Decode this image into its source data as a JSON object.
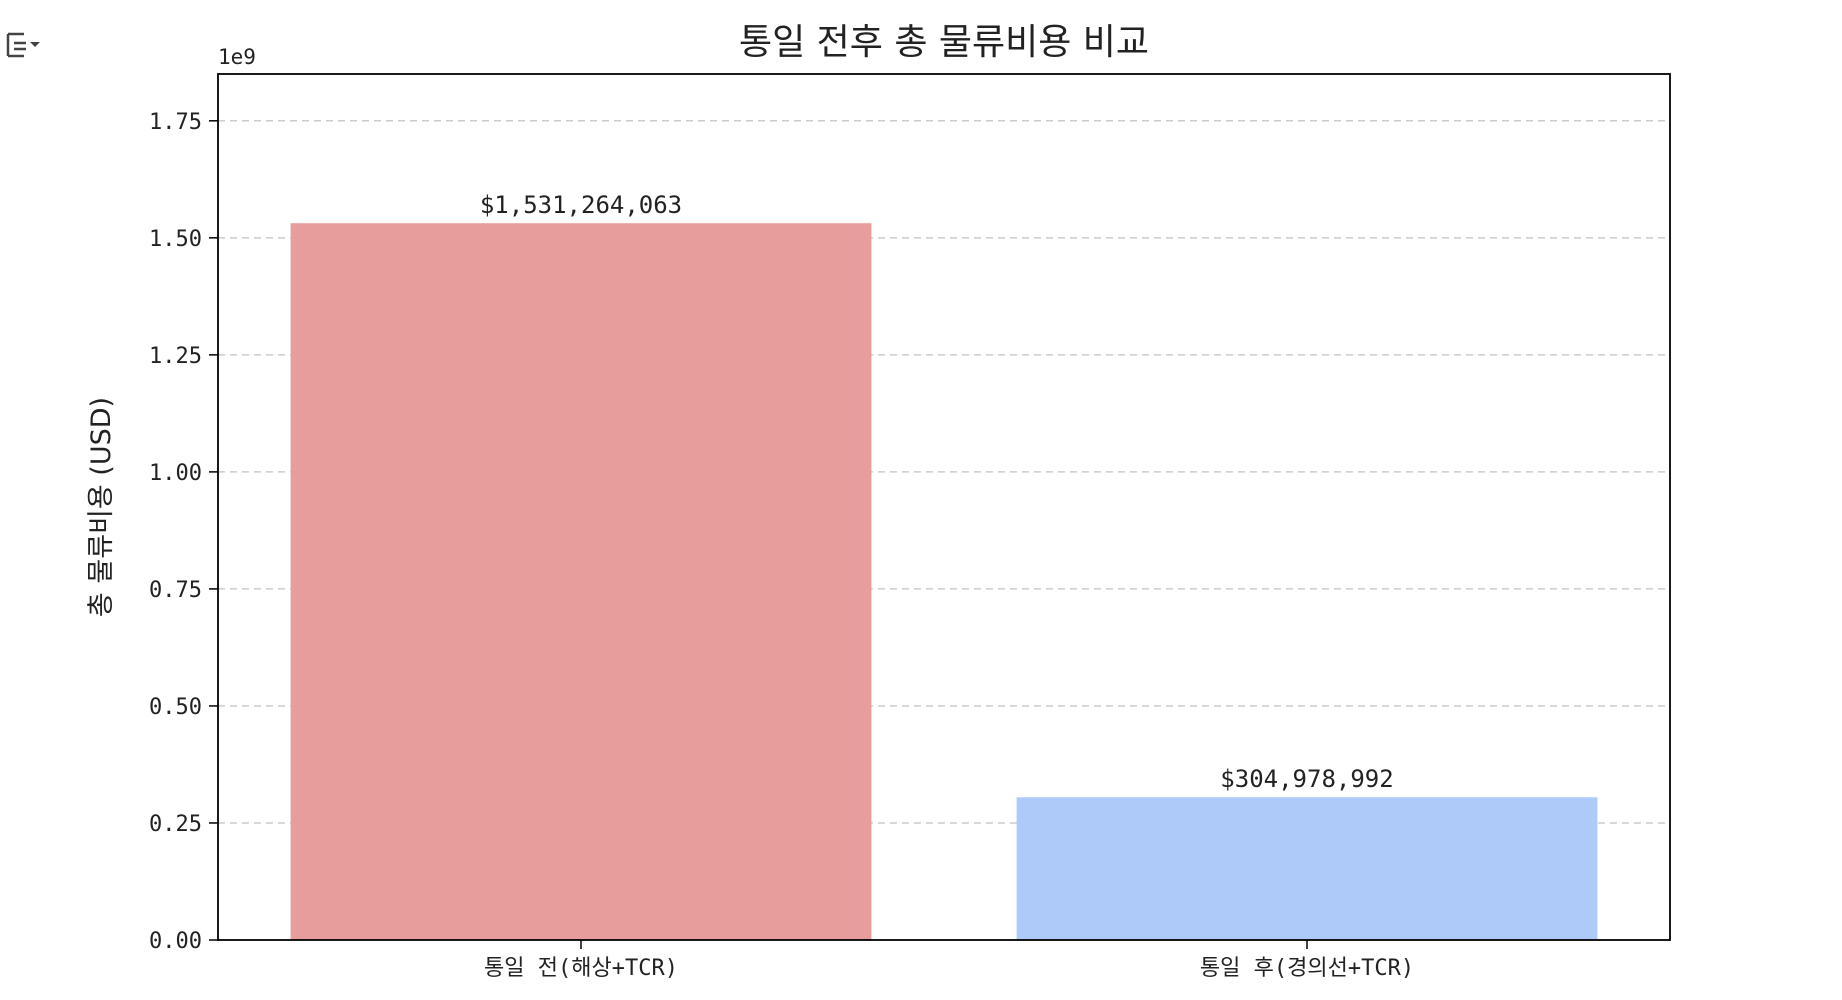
{
  "cell": {
    "output_icon": "output-toggle-icon"
  },
  "chart_data": {
    "type": "bar",
    "title": "통일 전후 총 물류비용 비교",
    "xlabel": "",
    "ylabel": "총 물류비용 (USD)",
    "categories": [
      "통일 전(해상+TCR)",
      "통일 후(경의선+TCR)"
    ],
    "values": [
      1531264063,
      304978992
    ],
    "value_labels": [
      "$1,531,264,063",
      "$304,978,992"
    ],
    "colors": [
      "#e69d9b",
      "#adcaf8"
    ],
    "ylim": [
      0,
      1850000000
    ],
    "yticks": [
      0,
      250000000,
      500000000,
      750000000,
      1000000000,
      1250000000,
      1500000000,
      1750000000
    ],
    "ytick_labels": [
      "0.00",
      "0.25",
      "0.50",
      "0.75",
      "1.00",
      "1.25",
      "1.50",
      "1.75"
    ],
    "y_offset_text": "1e9",
    "grid": "y-dashed",
    "legend": "none"
  }
}
